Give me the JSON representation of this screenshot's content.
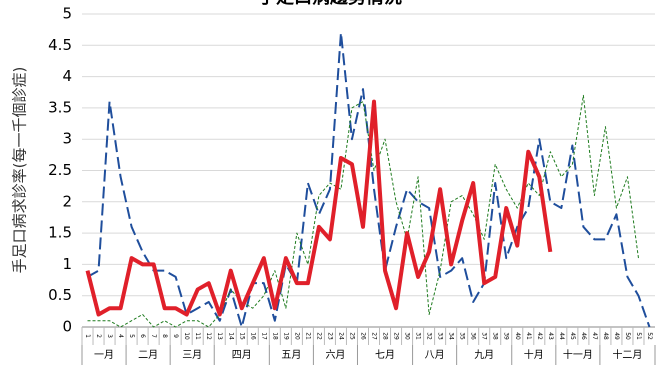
{
  "chart_data": {
    "type": "line",
    "title": "手足口病趨勢情況",
    "y_label": "手足口病求診率(每一千個診症)",
    "categories": [
      "1",
      "2",
      "3",
      "4",
      "5",
      "6",
      "7",
      "8",
      "9",
      "10",
      "11",
      "12",
      "13",
      "14",
      "15",
      "16",
      "17",
      "18",
      "19",
      "20",
      "21",
      "22",
      "23",
      "24",
      "25",
      "26",
      "27",
      "28",
      "29",
      "30",
      "31",
      "32",
      "33",
      "34",
      "35",
      "36",
      "37",
      "38",
      "39",
      "40",
      "41",
      "42",
      "43",
      "44",
      "45",
      "46",
      "47",
      "48",
      "49",
      "50",
      "51",
      "52"
    ],
    "months": [
      {
        "label": "一月",
        "weeks": 4
      },
      {
        "label": "二月",
        "weeks": 4
      },
      {
        "label": "三月",
        "weeks": 4
      },
      {
        "label": "四月",
        "weeks": 5
      },
      {
        "label": "五月",
        "weeks": 4
      },
      {
        "label": "六月",
        "weeks": 4
      },
      {
        "label": "七月",
        "weeks": 5
      },
      {
        "label": "八月",
        "weeks": 4
      },
      {
        "label": "九月",
        "weeks": 5
      },
      {
        "label": "十月",
        "weeks": 4
      },
      {
        "label": "十一月",
        "weeks": 4
      },
      {
        "label": "十二月",
        "weeks": 5
      }
    ],
    "ylim": [
      0,
      5
    ],
    "yticks": [
      0,
      0.5,
      1,
      1.5,
      2,
      2.5,
      3,
      3.5,
      4,
      4.5,
      5
    ],
    "grid": true,
    "series": [
      {
        "color": "#1f4e9c",
        "style": "dashed",
        "width": 2,
        "values": [
          0.8,
          0.9,
          3.6,
          2.4,
          1.6,
          1.2,
          0.9,
          0.9,
          0.8,
          0.2,
          0.3,
          0.4,
          0.1,
          0.6,
          0,
          0.7,
          0.7,
          0.1,
          1.0,
          0.7,
          2.3,
          1.8,
          2.2,
          4.7,
          3.0,
          3.8,
          2.2,
          0.9,
          1.6,
          2.2,
          2.0,
          1.9,
          0.8,
          0.9,
          1.1,
          0.4,
          0.7,
          2.3,
          1.1,
          1.6,
          1.9,
          3.0,
          2.0,
          1.9,
          2.9,
          1.6,
          1.4,
          1.4,
          1.8,
          0.8,
          0.5,
          0.0
        ]
      },
      {
        "color": "#1e7b1e",
        "style": "dotted",
        "width": 1,
        "values": [
          0.1,
          0.1,
          0.1,
          0,
          0.1,
          0.2,
          0,
          0.1,
          0,
          0.1,
          0.1,
          0,
          0.2,
          0.6,
          0.4,
          0.3,
          0.5,
          0.9,
          0.3,
          1.5,
          1.0,
          2.1,
          2.3,
          2.2,
          3.5,
          3.6,
          2.5,
          3.0,
          2.0,
          1.4,
          2.4,
          0.2,
          0.9,
          2.0,
          2.1,
          1.8,
          1.4,
          2.6,
          2.2,
          1.9,
          2.3,
          2.1,
          2.8,
          2.4,
          2.6,
          3.7,
          2.1,
          3.2,
          1.9,
          2.4,
          1.1,
          null
        ]
      },
      {
        "color": "#e0202a",
        "style": "solid",
        "width": 4,
        "values": [
          0.9,
          0.2,
          0.3,
          0.3,
          1.1,
          1.0,
          1.0,
          0.3,
          0.3,
          0.2,
          0.6,
          0.7,
          0.2,
          0.9,
          0.3,
          0.7,
          1.1,
          0.3,
          1.1,
          0.7,
          0.7,
          1.6,
          1.4,
          2.7,
          2.6,
          1.6,
          3.6,
          0.9,
          0.3,
          1.5,
          0.8,
          1.2,
          2.2,
          1.0,
          1.7,
          2.3,
          0.7,
          0.8,
          1.9,
          1.3,
          2.8,
          2.4,
          1.2,
          null,
          null,
          null,
          null,
          null,
          null,
          null,
          null,
          null
        ]
      }
    ]
  }
}
